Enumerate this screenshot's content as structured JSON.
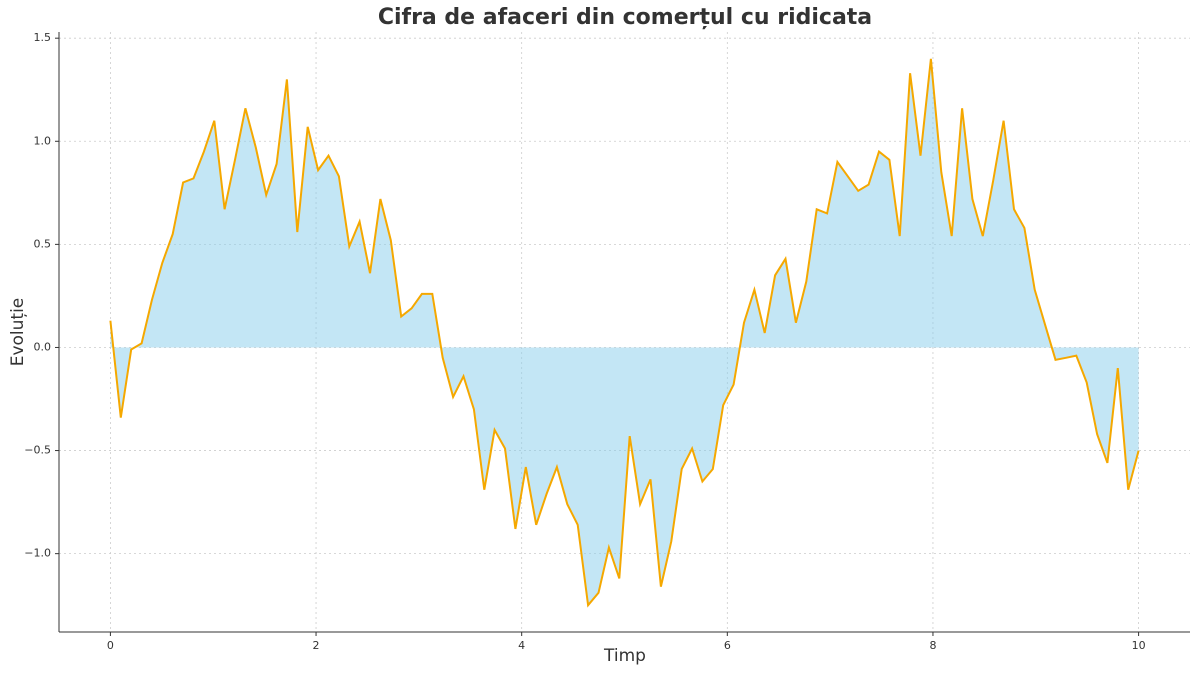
{
  "chart_data": {
    "type": "area-line",
    "title": "Cifra de afaceri din comerțul cu ridicata",
    "x_label": "Timp",
    "y_label": "Evoluție",
    "x": [
      0,
      0.101,
      0.202,
      0.303,
      0.404,
      0.505,
      0.606,
      0.707,
      0.808,
      0.909,
      1.01,
      1.111,
      1.212,
      1.313,
      1.414,
      1.515,
      1.616,
      1.717,
      1.818,
      1.919,
      2.02,
      2.121,
      2.222,
      2.323,
      2.424,
      2.525,
      2.626,
      2.727,
      2.828,
      2.929,
      3.03,
      3.131,
      3.232,
      3.333,
      3.434,
      3.535,
      3.636,
      3.737,
      3.838,
      3.939,
      4.04,
      4.141,
      4.242,
      4.343,
      4.444,
      4.545,
      4.646,
      4.747,
      4.848,
      4.949,
      5.051,
      5.152,
      5.253,
      5.354,
      5.455,
      5.556,
      5.657,
      5.758,
      5.859,
      5.96,
      6.061,
      6.162,
      6.263,
      6.364,
      6.465,
      6.566,
      6.667,
      6.768,
      6.869,
      6.97,
      7.071,
      7.172,
      7.273,
      7.374,
      7.475,
      7.576,
      7.677,
      7.778,
      7.879,
      7.98,
      8.081,
      8.182,
      8.283,
      8.384,
      8.485,
      8.586,
      8.687,
      8.788,
      8.889,
      8.99,
      9.091,
      9.192,
      9.293,
      9.394,
      9.495,
      9.596,
      9.697,
      9.798,
      9.899,
      10
    ],
    "values": [
      0.13,
      -0.34,
      -0.01,
      0.02,
      0.23,
      0.41,
      0.55,
      0.8,
      0.82,
      0.95,
      1.1,
      0.67,
      0.91,
      1.16,
      0.97,
      0.74,
      0.89,
      1.3,
      0.56,
      1.07,
      0.86,
      0.93,
      0.83,
      0.49,
      0.61,
      0.36,
      0.72,
      0.52,
      0.15,
      0.19,
      0.26,
      0.26,
      -0.05,
      -0.24,
      -0.14,
      -0.3,
      -0.69,
      -0.4,
      -0.49,
      -0.88,
      -0.58,
      -0.86,
      -0.71,
      -0.58,
      -0.76,
      -0.86,
      -1.25,
      -1.19,
      -0.97,
      -1.12,
      -0.43,
      -0.76,
      -0.64,
      -1.16,
      -0.94,
      -0.59,
      -0.49,
      -0.65,
      -0.59,
      -0.28,
      -0.18,
      0.12,
      0.28,
      0.07,
      0.35,
      0.43,
      0.12,
      0.32,
      0.67,
      0.65,
      0.9,
      0.83,
      0.76,
      0.79,
      0.95,
      0.91,
      0.54,
      1.33,
      0.93,
      1.4,
      0.85,
      0.54,
      1.16,
      0.72,
      0.54,
      0.81,
      1.1,
      0.67,
      0.58,
      0.28,
      0.11,
      -0.06,
      -0.05,
      -0.04,
      -0.17,
      -0.42,
      -0.56,
      -0.1,
      -0.69,
      -0.5
    ],
    "color": "#f5a800",
    "fill_color": "#87ceeb",
    "xlim": [
      -0.5,
      10.5
    ],
    "ylim": [
      -1.38,
      1.53
    ],
    "xticks": [
      0,
      2,
      4,
      6,
      8,
      10
    ],
    "yticks": [
      {
        "value": -1.0,
        "label": "−1.0"
      },
      {
        "value": -0.5,
        "label": "−0.5"
      },
      {
        "value": 0.0,
        "label": "0.0"
      },
      {
        "value": 0.5,
        "label": "0.5"
      },
      {
        "value": 1.0,
        "label": "1.0"
      },
      {
        "value": 1.5,
        "label": "1.5"
      }
    ],
    "grid": true
  }
}
